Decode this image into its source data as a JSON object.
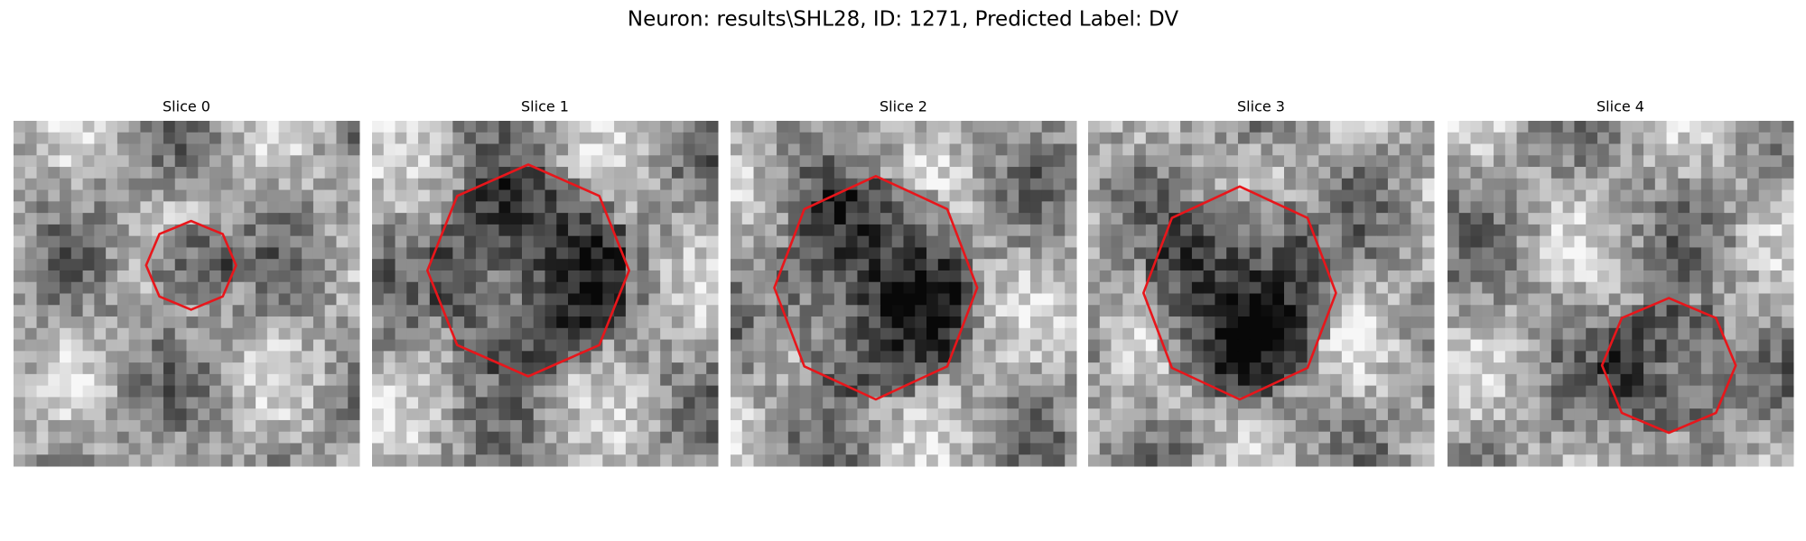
{
  "title": "Neuron: results\\SHL28, ID: 1271, Predicted Label: DV",
  "panels": [
    {
      "title": "Slice 0"
    },
    {
      "title": "Slice 1"
    },
    {
      "title": "Slice 2"
    },
    {
      "title": "Slice 3"
    },
    {
      "title": "Slice 4"
    }
  ]
}
